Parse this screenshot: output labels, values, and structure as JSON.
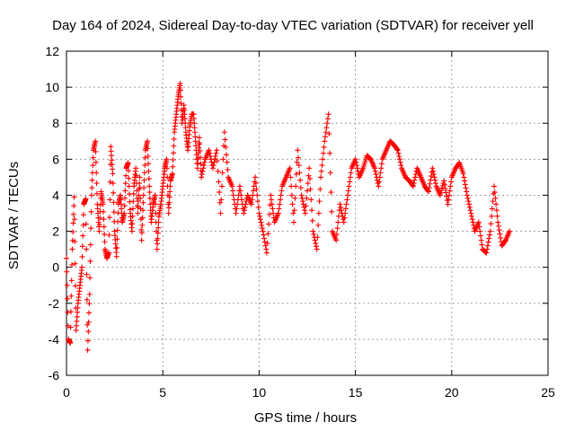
{
  "chart_data": {
    "type": "scatter",
    "title": "Day 164 of 2024, Sidereal Day-to-day VTEC variation (SDTVAR) for receiver yell",
    "xlabel": "GPS time / hours",
    "ylabel": "SDTVAR / TECUs",
    "xlim": [
      0,
      25
    ],
    "ylim": [
      -6,
      12
    ],
    "xticks": [
      "0",
      "5",
      "10",
      "15",
      "20",
      "25"
    ],
    "yticks": [
      "-6",
      "-4",
      "-2",
      "0",
      "2",
      "4",
      "6",
      "8",
      "10",
      "12"
    ],
    "grid": true,
    "marker": "+",
    "series": [
      {
        "name": "SDTVAR",
        "color": "#ff0000",
        "x": [
          0.0,
          0.1,
          0.2,
          0.3,
          0.4,
          0.5,
          0.6,
          0.7,
          0.8,
          0.9,
          1.0,
          1.1,
          1.2,
          1.3,
          1.4,
          1.5,
          1.6,
          1.7,
          1.8,
          1.9,
          2.0,
          2.1,
          2.2,
          2.3,
          2.4,
          2.5,
          2.6,
          2.7,
          2.8,
          2.9,
          3.0,
          3.1,
          3.2,
          3.3,
          3.4,
          3.5,
          3.6,
          3.7,
          3.8,
          3.9,
          4.0,
          4.1,
          4.2,
          4.3,
          4.4,
          4.5,
          4.6,
          4.7,
          4.8,
          4.9,
          5.0,
          5.1,
          5.2,
          5.3,
          5.4,
          5.5,
          5.6,
          5.7,
          5.8,
          5.9,
          6.0,
          6.1,
          6.2,
          6.3,
          6.4,
          6.5,
          6.6,
          6.7,
          6.8,
          6.9,
          7.0,
          7.2,
          7.4,
          7.6,
          7.8,
          8.0,
          8.2,
          8.4,
          8.6,
          8.8,
          9.0,
          9.2,
          9.4,
          9.6,
          9.8,
          10.0,
          10.2,
          10.4,
          10.6,
          10.8,
          11.0,
          11.2,
          11.4,
          11.6,
          11.8,
          12.0,
          12.2,
          12.4,
          12.6,
          12.8,
          13.0,
          13.2,
          13.4,
          13.6,
          13.8,
          14.0,
          14.2,
          14.4,
          14.6,
          14.8,
          15.0,
          15.2,
          15.4,
          15.6,
          15.8,
          16.0,
          16.2,
          16.4,
          16.6,
          16.8,
          17.0,
          17.2,
          17.4,
          17.6,
          17.8,
          18.0,
          18.2,
          18.4,
          18.6,
          18.8,
          19.0,
          19.2,
          19.4,
          19.6,
          19.8,
          20.0,
          20.2,
          20.4,
          20.6,
          20.8,
          21.0,
          21.2,
          21.4,
          21.6,
          21.8,
          22.0,
          22.2,
          22.4,
          22.6,
          22.8,
          23.0
        ],
        "y": [
          0.5,
          -4.0,
          -4.2,
          1.0,
          3.9,
          -3.5,
          -2.0,
          -1.0,
          0.0,
          3.5,
          3.8,
          -4.6,
          -1.5,
          4.0,
          6.5,
          7.0,
          3.5,
          2.0,
          4.2,
          3.5,
          1.0,
          0.5,
          0.8,
          6.7,
          5.2,
          2.0,
          0.6,
          3.5,
          4.0,
          2.5,
          3.0,
          5.5,
          5.8,
          3.2,
          2.0,
          4.5,
          5.5,
          3.0,
          5.0,
          1.5,
          4.0,
          6.5,
          7.0,
          4.5,
          2.5,
          3.5,
          4.0,
          1.0,
          2.8,
          3.5,
          4.5,
          5.5,
          6.0,
          3.0,
          4.8,
          5.2,
          7.5,
          8.5,
          9.5,
          10.2,
          8.0,
          9.0,
          7.5,
          6.5,
          7.8,
          8.5,
          8.5,
          7.0,
          5.5,
          7.2,
          5.0,
          6.0,
          6.5,
          5.5,
          6.5,
          3.0,
          7.5,
          5.0,
          4.5,
          3.0,
          4.5,
          3.0,
          4.0,
          3.5,
          5.0,
          3.0,
          2.0,
          0.8,
          4.0,
          2.5,
          3.0,
          4.5,
          5.0,
          5.5,
          2.5,
          6.5,
          4.0,
          3.0,
          5.5,
          2.0,
          1.0,
          5.0,
          7.0,
          8.5,
          2.0,
          1.5,
          3.5,
          2.5,
          4.0,
          5.5,
          6.0,
          5.0,
          5.5,
          6.2,
          6.0,
          5.5,
          4.5,
          6.0,
          6.5,
          7.0,
          6.8,
          6.5,
          5.5,
          5.0,
          4.8,
          4.5,
          5.5,
          5.0,
          4.5,
          4.2,
          5.5,
          4.5,
          4.0,
          4.8,
          3.5,
          5.0,
          5.5,
          5.8,
          5.2,
          4.0,
          3.0,
          2.0,
          2.5,
          1.0,
          0.8,
          2.0,
          4.5,
          2.5,
          1.2,
          1.5,
          2.0
        ]
      }
    ]
  }
}
